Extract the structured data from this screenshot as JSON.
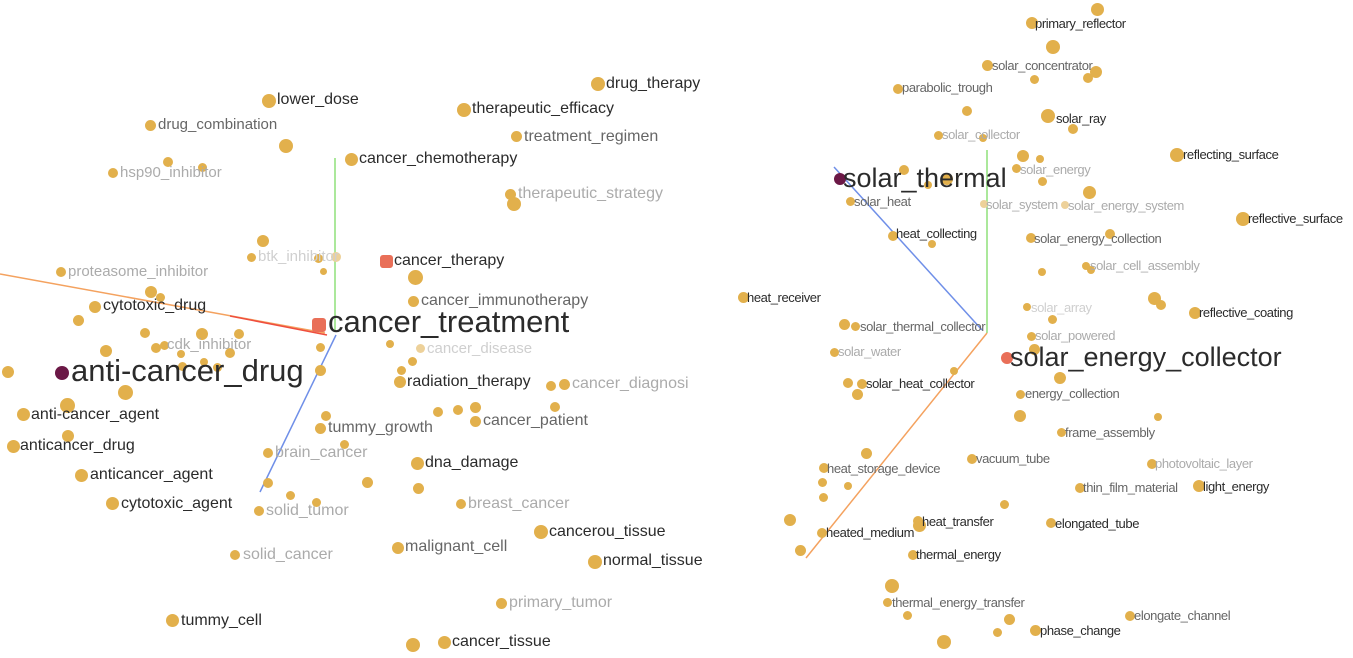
{
  "left_panel": {
    "focus": {
      "label": "anti-cancer_drug"
    },
    "center": {
      "label": "cancer_treatment"
    },
    "labels": {
      "lower_dose": "lower_dose",
      "drug_combination": "drug_combination",
      "hsp90_inhibitor": "hsp90_inhibitor",
      "drug_therapy": "drug_therapy",
      "therapeutic_efficacy": "therapeutic_efficacy",
      "treatment_regimen": "treatment_regimen",
      "cancer_chemotherapy": "cancer_chemotherapy",
      "therapeutic_strategy": "therapeutic_strategy",
      "btk_inhibitor": "btk_inhibitor",
      "proteasome_inhibitor": "proteasome_inhibitor",
      "cancer_therapy": "cancer_therapy",
      "cytotoxic_drug": "cytotoxic_drug",
      "cancer_immunotherapy": "cancer_immunotherapy",
      "cdk_inhibitor": "cdk_inhibitor",
      "cancer_disease": "cancer_disease",
      "radiation_therapy": "radiation_therapy",
      "cancer_diagnosi": "cancer_diagnosi",
      "anti_cancer_agent": "anti-cancer_agent",
      "anticancer_drug": "anticancer_drug",
      "tummy_growth": "tummy_growth",
      "cancer_patient": "cancer_patient",
      "brain_cancer": "brain_cancer",
      "dna_damage": "dna_damage",
      "anticancer_agent": "anticancer_agent",
      "cytotoxic_agent": "cytotoxic_agent",
      "solid_tumor": "solid_tumor",
      "breast_cancer": "breast_cancer",
      "cancerou_tissue": "cancerou_tissue",
      "malignant_cell": "malignant_cell",
      "normal_tissue": "normal_tissue",
      "solid_cancer": "solid_cancer",
      "primary_tumor": "primary_tumor",
      "tummy_cell": "tummy_cell",
      "cancer_tissue": "cancer_tissue"
    }
  },
  "right_panel": {
    "focus": {
      "label": "solar_thermal"
    },
    "center": {
      "label": "solar_energy_collector"
    },
    "labels": {
      "primary_reflector": "primary_reflector",
      "solar_concentrator": "solar_concentrator",
      "parabolic_trough": "parabolic_trough",
      "solar_ray": "solar_ray",
      "solar_collector": "solar_collector",
      "reflecting_surface": "reflecting_surface",
      "solar_energy": "solar_energy",
      "solar_heat": "solar_heat",
      "solar_system": "solar_system",
      "solar_energy_system": "solar_energy_system",
      "reflective_surface": "reflective_surface",
      "heat_collecting": "heat_collecting",
      "solar_energy_collection": "solar_energy_collection",
      "solar_cell_assembly": "solar_cell_assembly",
      "heat_receiver": "heat_receiver",
      "solar_array": "solar_array",
      "reflective_coating": "reflective_coating",
      "solar_thermal_collector": "solar_thermal_collector",
      "solar_powered": "solar_powered",
      "solar_water": "solar_water",
      "solar_heat_collector": "solar_heat_collector",
      "energy_collection": "energy_collection",
      "frame_assembly": "frame_assembly",
      "heat_storage_device": "heat_storage_device",
      "vacuum_tube": "vacuum_tube",
      "photovoltaic_layer": "photovoltaic_layer",
      "thin_film_material": "thin_film_material",
      "light_energy": "light_energy",
      "heat_transfer": "heat_transfer",
      "elongated_tube": "elongated_tube",
      "heated_medium": "heated_medium",
      "thermal_energy": "thermal_energy",
      "thermal_energy_transfer": "thermal_energy_transfer",
      "elongate_channel": "elongate_channel",
      "phase_change": "phase_change"
    }
  },
  "colors": {
    "point": "#e2b04c",
    "point_dim": "#edd19a",
    "highlight": "#e96f58",
    "focus": "#6b1846",
    "axis_x": "#f4a25f",
    "axis_y": "#8fe07a",
    "axis_z": "#6f8fe8"
  }
}
